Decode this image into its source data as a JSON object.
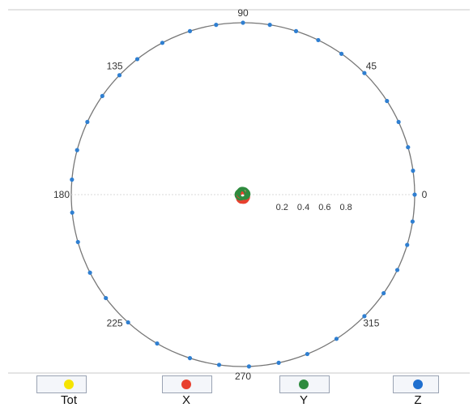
{
  "chart_data": {
    "type": "polar-scatter",
    "title": "",
    "angle_ticks": [
      "0",
      "45",
      "90",
      "135",
      "180",
      "225",
      "270",
      "315"
    ],
    "radial_ticks": [
      "0.2",
      "0.4",
      "0.6",
      "0.8"
    ],
    "rlim": [
      0,
      1
    ],
    "grid": false,
    "legend_position": "bottom",
    "series": [
      {
        "name": "Tot",
        "color": "#f5e400",
        "points": []
      },
      {
        "name": "X",
        "color": "#e8402f",
        "points": [
          {
            "angle": 250,
            "r": 0.02
          },
          {
            "angle": 280,
            "r": 0.02
          },
          {
            "angle": 300,
            "r": 0.015
          },
          {
            "angle": 230,
            "r": 0.012
          },
          {
            "angle": 200,
            "r": 0.01
          }
        ]
      },
      {
        "name": "Y",
        "color": "#2e8b3e",
        "points": [
          {
            "angle": 70,
            "r": 0.01
          },
          {
            "angle": 110,
            "r": 0.012
          },
          {
            "angle": 180,
            "r": 0.015
          },
          {
            "angle": 20,
            "r": 0.01
          }
        ]
      },
      {
        "name": "Z",
        "color": "#2f7fd1",
        "points": [
          {
            "angle": 0,
            "r": 1
          },
          {
            "angle": 8,
            "r": 1
          },
          {
            "angle": 16,
            "r": 1
          },
          {
            "angle": 25,
            "r": 1
          },
          {
            "angle": 33,
            "r": 1
          },
          {
            "angle": 45,
            "r": 1
          },
          {
            "angle": 55,
            "r": 1
          },
          {
            "angle": 64,
            "r": 1
          },
          {
            "angle": 72,
            "r": 1
          },
          {
            "angle": 81,
            "r": 1
          },
          {
            "angle": 90,
            "r": 1
          },
          {
            "angle": 99,
            "r": 1
          },
          {
            "angle": 108,
            "r": 1
          },
          {
            "angle": 118,
            "r": 1
          },
          {
            "angle": 128,
            "r": 1
          },
          {
            "angle": 136,
            "r": 1
          },
          {
            "angle": 145,
            "r": 1
          },
          {
            "angle": 155,
            "r": 1
          },
          {
            "angle": 165,
            "r": 1
          },
          {
            "angle": 175,
            "r": 1
          },
          {
            "angle": 186,
            "r": 1
          },
          {
            "angle": 196,
            "r": 1
          },
          {
            "angle": 207,
            "r": 1
          },
          {
            "angle": 217,
            "r": 1
          },
          {
            "angle": 228,
            "r": 1
          },
          {
            "angle": 240,
            "r": 1
          },
          {
            "angle": 252,
            "r": 1
          },
          {
            "angle": 262,
            "r": 1
          },
          {
            "angle": 272,
            "r": 1
          },
          {
            "angle": 282,
            "r": 1
          },
          {
            "angle": 292,
            "r": 1
          },
          {
            "angle": 303,
            "r": 1
          },
          {
            "angle": 315,
            "r": 1
          },
          {
            "angle": 325,
            "r": 1
          },
          {
            "angle": 334,
            "r": 1
          },
          {
            "angle": 343,
            "r": 1
          },
          {
            "angle": 351,
            "r": 1
          }
        ]
      }
    ]
  },
  "legend": {
    "items": [
      {
        "label": "Tot",
        "color": "#f5e400"
      },
      {
        "label": "X",
        "color": "#e8402f"
      },
      {
        "label": "Y",
        "color": "#2e8b3e"
      },
      {
        "label": "Z",
        "color": "#1f6fcf"
      }
    ]
  }
}
